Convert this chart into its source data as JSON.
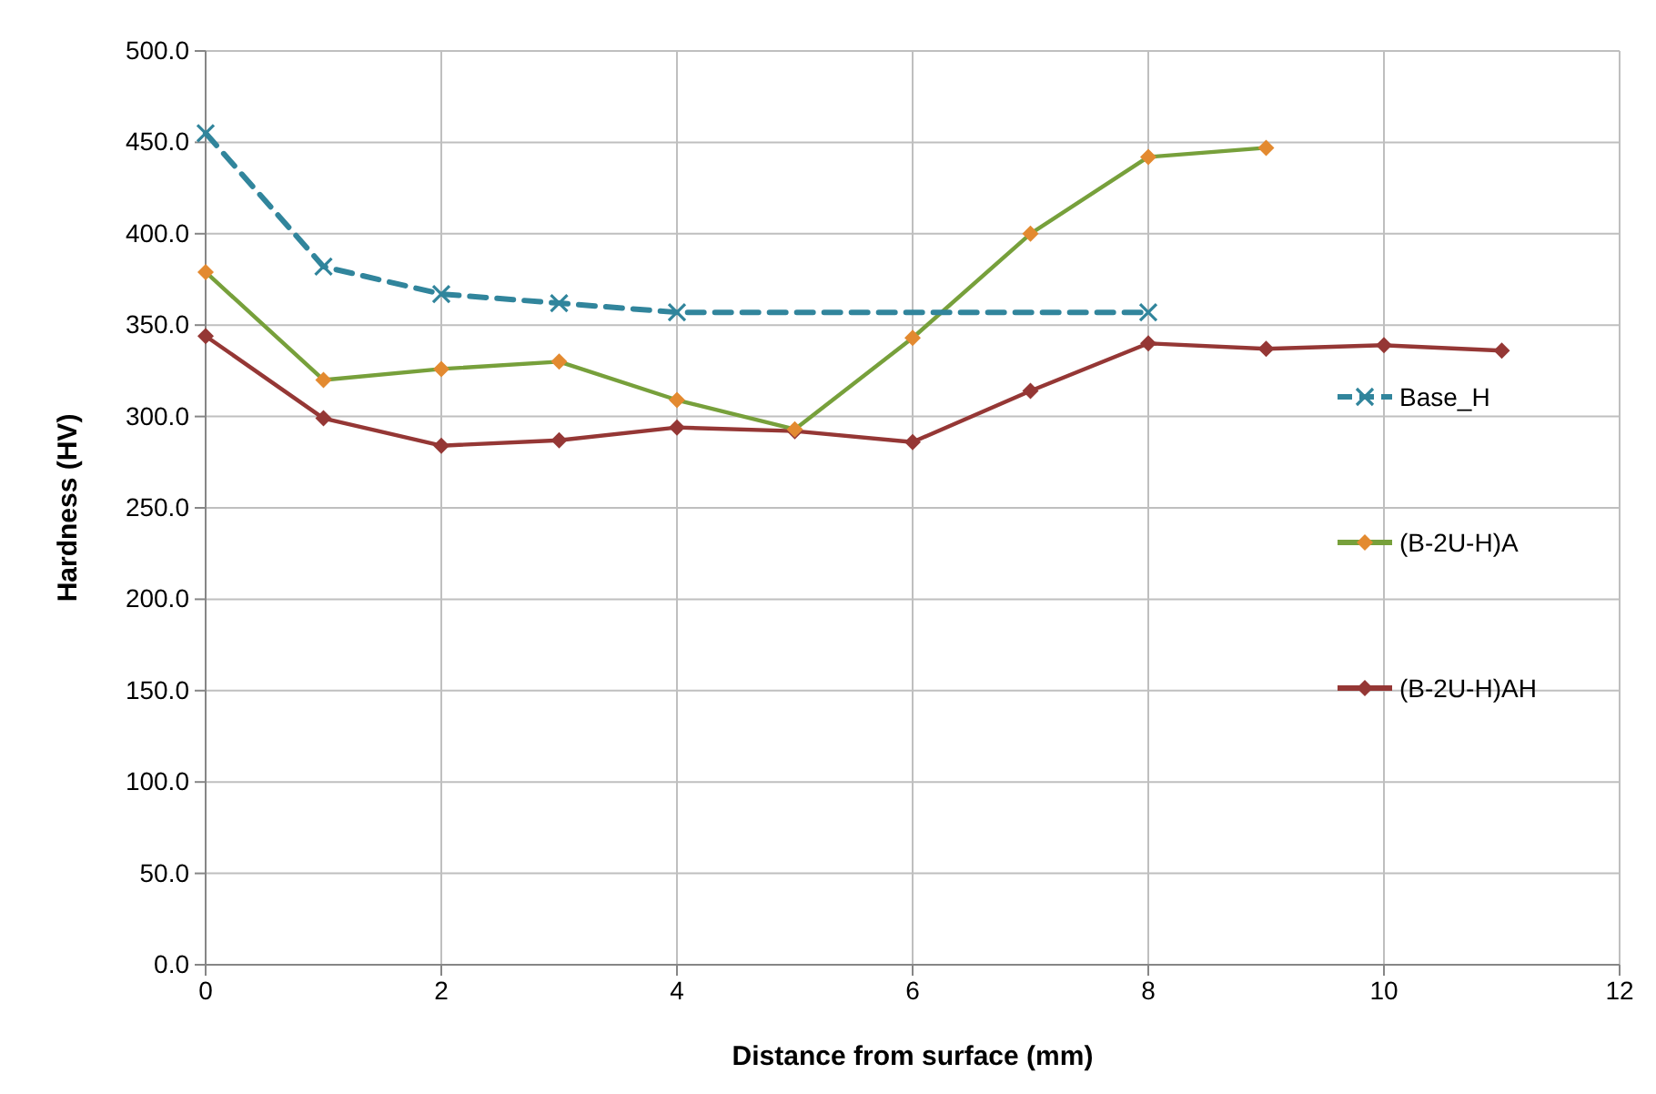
{
  "chart_data": {
    "type": "line",
    "xlabel": "Distance from surface (mm)",
    "ylabel": "Hardness (HV)",
    "xlim": [
      0,
      12
    ],
    "xticks": [
      0,
      2,
      4,
      6,
      8,
      10,
      12
    ],
    "ylim": [
      0,
      500
    ],
    "yticks": [
      {
        "value": 0,
        "label": "0.0"
      },
      {
        "value": 50,
        "label": "50.0"
      },
      {
        "value": 100,
        "label": "100.0"
      },
      {
        "value": 150,
        "label": "150.0"
      },
      {
        "value": 200,
        "label": "200.0"
      },
      {
        "value": 250,
        "label": "250.0"
      },
      {
        "value": 300,
        "label": "300.0"
      },
      {
        "value": 350,
        "label": "350.0"
      },
      {
        "value": 400,
        "label": "400.0"
      },
      {
        "value": 450,
        "label": "450.0"
      },
      {
        "value": 500,
        "label": "500.0"
      }
    ],
    "grid": true,
    "legend": "right",
    "series": [
      {
        "name": "Base_H",
        "color": "#31859c",
        "marker": "cross",
        "line_style": "dashed",
        "x": [
          0,
          1,
          2,
          3,
          4,
          8
        ],
        "values": [
          455,
          382,
          367,
          362,
          357,
          357
        ]
      },
      {
        "name": "(B-2U-H)A",
        "color": "#77a03b",
        "colors": [
          "#e38a30",
          "#e38a30",
          "#e38a30",
          "#e38a30",
          "#e38a30",
          "#e38a30",
          "#e38a30",
          "#e38a30",
          "#e38a30",
          "#e38a30"
        ],
        "marker": "diamond",
        "line_style": "solid",
        "x": [
          0,
          1,
          2,
          3,
          4,
          5,
          6,
          7,
          8,
          9
        ],
        "values": [
          379,
          320,
          326,
          330,
          309,
          293,
          343,
          400,
          442,
          447
        ]
      },
      {
        "name": "(B-2U-H)AH",
        "color": "#953735",
        "marker": "diamond",
        "line_style": "solid",
        "x": [
          0,
          1,
          2,
          3,
          4,
          5,
          6,
          7,
          8,
          9,
          10,
          11
        ],
        "values": [
          344,
          299,
          284,
          287,
          294,
          292,
          286,
          314,
          340,
          337,
          339,
          336
        ]
      }
    ]
  }
}
